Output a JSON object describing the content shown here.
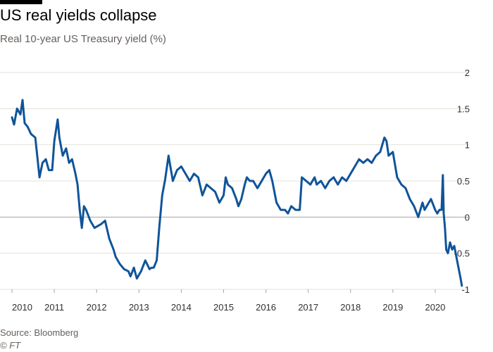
{
  "header": {
    "title": "US real yields collapse",
    "subtitle": "Real 10-year US Treasury yield (%)"
  },
  "footer": {
    "source": "Source: Bloomberg",
    "copyright": "© FT"
  },
  "colors": {
    "line": "#0f5499",
    "grid": "#e6e0da",
    "zero": "#a9a39e",
    "text": "#33302e"
  },
  "chart_data": {
    "type": "line",
    "title": "US real yields collapse",
    "subtitle": "Real 10-year US Treasury yield (%)",
    "xlabel": "",
    "ylabel": "",
    "xlim": [
      2010.0,
      2020.65
    ],
    "ylim": [
      -1,
      2
    ],
    "grid": true,
    "yaxis_side": "right",
    "x_ticks": [
      "2010",
      "2011",
      "2012",
      "2013",
      "2014",
      "2015",
      "2016",
      "2017",
      "2018",
      "2019",
      "2020"
    ],
    "y_ticks": [
      "2",
      "1.5",
      "1",
      "0.5",
      "0",
      "-0.5",
      "-1"
    ],
    "series": [
      {
        "name": "",
        "x": [
          2010.0,
          2010.05,
          2010.12,
          2010.2,
          2010.25,
          2010.3,
          2010.37,
          2010.45,
          2010.55,
          2010.65,
          2010.72,
          2010.8,
          2010.87,
          2010.95,
          2011.0,
          2011.08,
          2011.12,
          2011.2,
          2011.28,
          2011.35,
          2011.42,
          2011.5,
          2011.55,
          2011.6,
          2011.65,
          2011.7,
          2011.75,
          2011.85,
          2011.95,
          2012.1,
          2012.2,
          2012.3,
          2012.4,
          2012.45,
          2012.55,
          2012.65,
          2012.75,
          2012.8,
          2012.88,
          2012.95,
          2013.05,
          2013.15,
          2013.25,
          2013.3,
          2013.35,
          2013.42,
          2013.48,
          2013.55,
          2013.62,
          2013.7,
          2013.8,
          2013.9,
          2014.0,
          2014.1,
          2014.2,
          2014.3,
          2014.4,
          2014.5,
          2014.6,
          2014.7,
          2014.8,
          2014.9,
          2015.0,
          2015.05,
          2015.1,
          2015.2,
          2015.3,
          2015.35,
          2015.42,
          2015.5,
          2015.55,
          2015.62,
          2015.7,
          2015.8,
          2015.9,
          2016.0,
          2016.08,
          2016.15,
          2016.25,
          2016.35,
          2016.45,
          2016.52,
          2016.6,
          2016.7,
          2016.8,
          2016.85,
          2016.95,
          2017.05,
          2017.15,
          2017.2,
          2017.3,
          2017.4,
          2017.5,
          2017.6,
          2017.7,
          2017.8,
          2017.9,
          2018.0,
          2018.1,
          2018.2,
          2018.3,
          2018.4,
          2018.5,
          2018.6,
          2018.7,
          2018.8,
          2018.85,
          2018.9,
          2019.0,
          2019.1,
          2019.2,
          2019.3,
          2019.4,
          2019.5,
          2019.6,
          2019.7,
          2019.75,
          2019.8,
          2019.9,
          2020.0,
          2020.05,
          2020.1,
          2020.15,
          2020.18,
          2020.2,
          2020.23,
          2020.26,
          2020.3,
          2020.35,
          2020.4,
          2020.45,
          2020.5,
          2020.55,
          2020.6,
          2020.63
        ],
        "values": [
          1.38,
          1.28,
          1.5,
          1.42,
          1.62,
          1.3,
          1.25,
          1.15,
          1.1,
          0.55,
          0.75,
          0.8,
          0.65,
          0.65,
          1.05,
          1.35,
          1.1,
          0.85,
          0.95,
          0.75,
          0.8,
          0.6,
          0.45,
          0.1,
          -0.15,
          0.15,
          0.1,
          -0.05,
          -0.15,
          -0.1,
          -0.05,
          -0.3,
          -0.45,
          -0.55,
          -0.65,
          -0.72,
          -0.75,
          -0.82,
          -0.7,
          -0.85,
          -0.75,
          -0.6,
          -0.72,
          -0.7,
          -0.7,
          -0.6,
          -0.15,
          0.3,
          0.52,
          0.85,
          0.5,
          0.65,
          0.7,
          0.6,
          0.5,
          0.6,
          0.55,
          0.3,
          0.45,
          0.4,
          0.35,
          0.2,
          0.3,
          0.55,
          0.45,
          0.4,
          0.25,
          0.15,
          0.25,
          0.45,
          0.55,
          0.5,
          0.5,
          0.4,
          0.5,
          0.6,
          0.65,
          0.5,
          0.2,
          0.1,
          0.1,
          0.05,
          0.15,
          0.1,
          0.1,
          0.55,
          0.5,
          0.45,
          0.55,
          0.45,
          0.5,
          0.4,
          0.5,
          0.55,
          0.45,
          0.55,
          0.5,
          0.6,
          0.7,
          0.8,
          0.75,
          0.8,
          0.75,
          0.85,
          0.9,
          1.1,
          1.05,
          0.85,
          0.9,
          0.55,
          0.45,
          0.4,
          0.25,
          0.15,
          0.0,
          0.2,
          0.1,
          0.15,
          0.25,
          0.1,
          0.05,
          0.1,
          0.1,
          0.58,
          0.05,
          -0.15,
          -0.45,
          -0.5,
          -0.35,
          -0.45,
          -0.4,
          -0.55,
          -0.7,
          -0.85,
          -0.95
        ]
      }
    ]
  }
}
